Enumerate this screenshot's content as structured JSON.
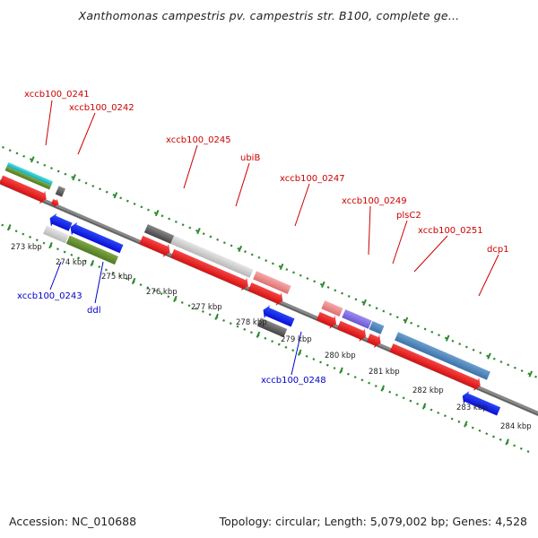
{
  "title": "Xanthomonas campestris pv. campestris str. B100, complete ge...",
  "footer": {
    "accession": "Accession: NC_010688",
    "summary": "Topology: circular; Length: 5,079,002 bp; Genes: 4,528"
  },
  "colors": {
    "backbone": "#888888",
    "tick": "#2e8b2e",
    "forward_label": "#cc0000",
    "reverse_label": "#0000cc"
  },
  "scale_labels": [
    "273 kbp",
    "274 kbp",
    "275 kbp",
    "276 kbp",
    "277 kbp",
    "278 kbp",
    "279 kbp",
    "280 kbp",
    "281 kbp",
    "282 kbp",
    "283 kbp",
    "284 kbp"
  ],
  "forward_genes": [
    {
      "label": "xccb100_0241"
    },
    {
      "label": "xccb100_0242"
    },
    {
      "label": "xccb100_0245"
    },
    {
      "label": "ubiB"
    },
    {
      "label": "xccb100_0247"
    },
    {
      "label": "xccb100_0249"
    },
    {
      "label": "plsC2"
    },
    {
      "label": "xccb100_0251"
    },
    {
      "label": "dcp1"
    }
  ],
  "reverse_genes": [
    {
      "label": "xccb100_0243"
    },
    {
      "label": "ddl"
    },
    {
      "label": "xccb100_0248"
    }
  ]
}
